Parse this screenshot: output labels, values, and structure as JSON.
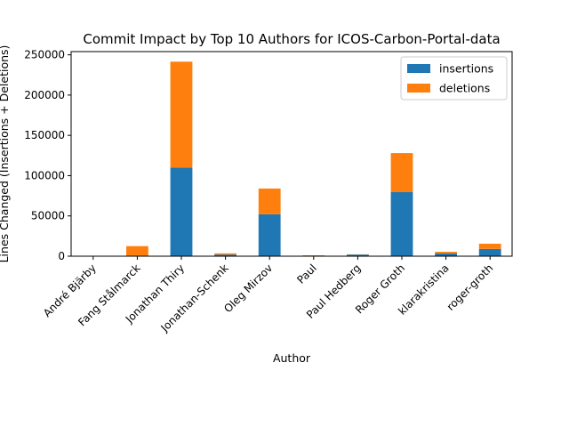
{
  "chart_data": {
    "type": "bar",
    "stacked": true,
    "title": "Commit Impact by Top 10 Authors for ICOS-Carbon-Portal-data",
    "xlabel": "Author",
    "ylabel": "Lines Changed (Insertions + Deletions)",
    "ylim": [
      0,
      254000
    ],
    "yticks": [
      0,
      50000,
      100000,
      150000,
      200000,
      250000
    ],
    "grid": false,
    "legend_position": "top-right",
    "categories": [
      "André Bjärby",
      "Fang Stålmarck",
      "Jonathan Thiry",
      "Jonathan-Schenk",
      "Oleg Mirzov",
      "Paul",
      "Paul Hedberg",
      "Roger Groth",
      "klarakristina",
      "roger-groth"
    ],
    "series": [
      {
        "name": "insertions",
        "color": "#1f77b4",
        "values": [
          200,
          500,
          110000,
          2000,
          52000,
          400,
          2000,
          79500,
          3500,
          9000
        ]
      },
      {
        "name": "deletions",
        "color": "#ff7f0e",
        "values": [
          100,
          12000,
          131500,
          1500,
          32000,
          700,
          300,
          48500,
          2000,
          6500
        ]
      }
    ]
  }
}
